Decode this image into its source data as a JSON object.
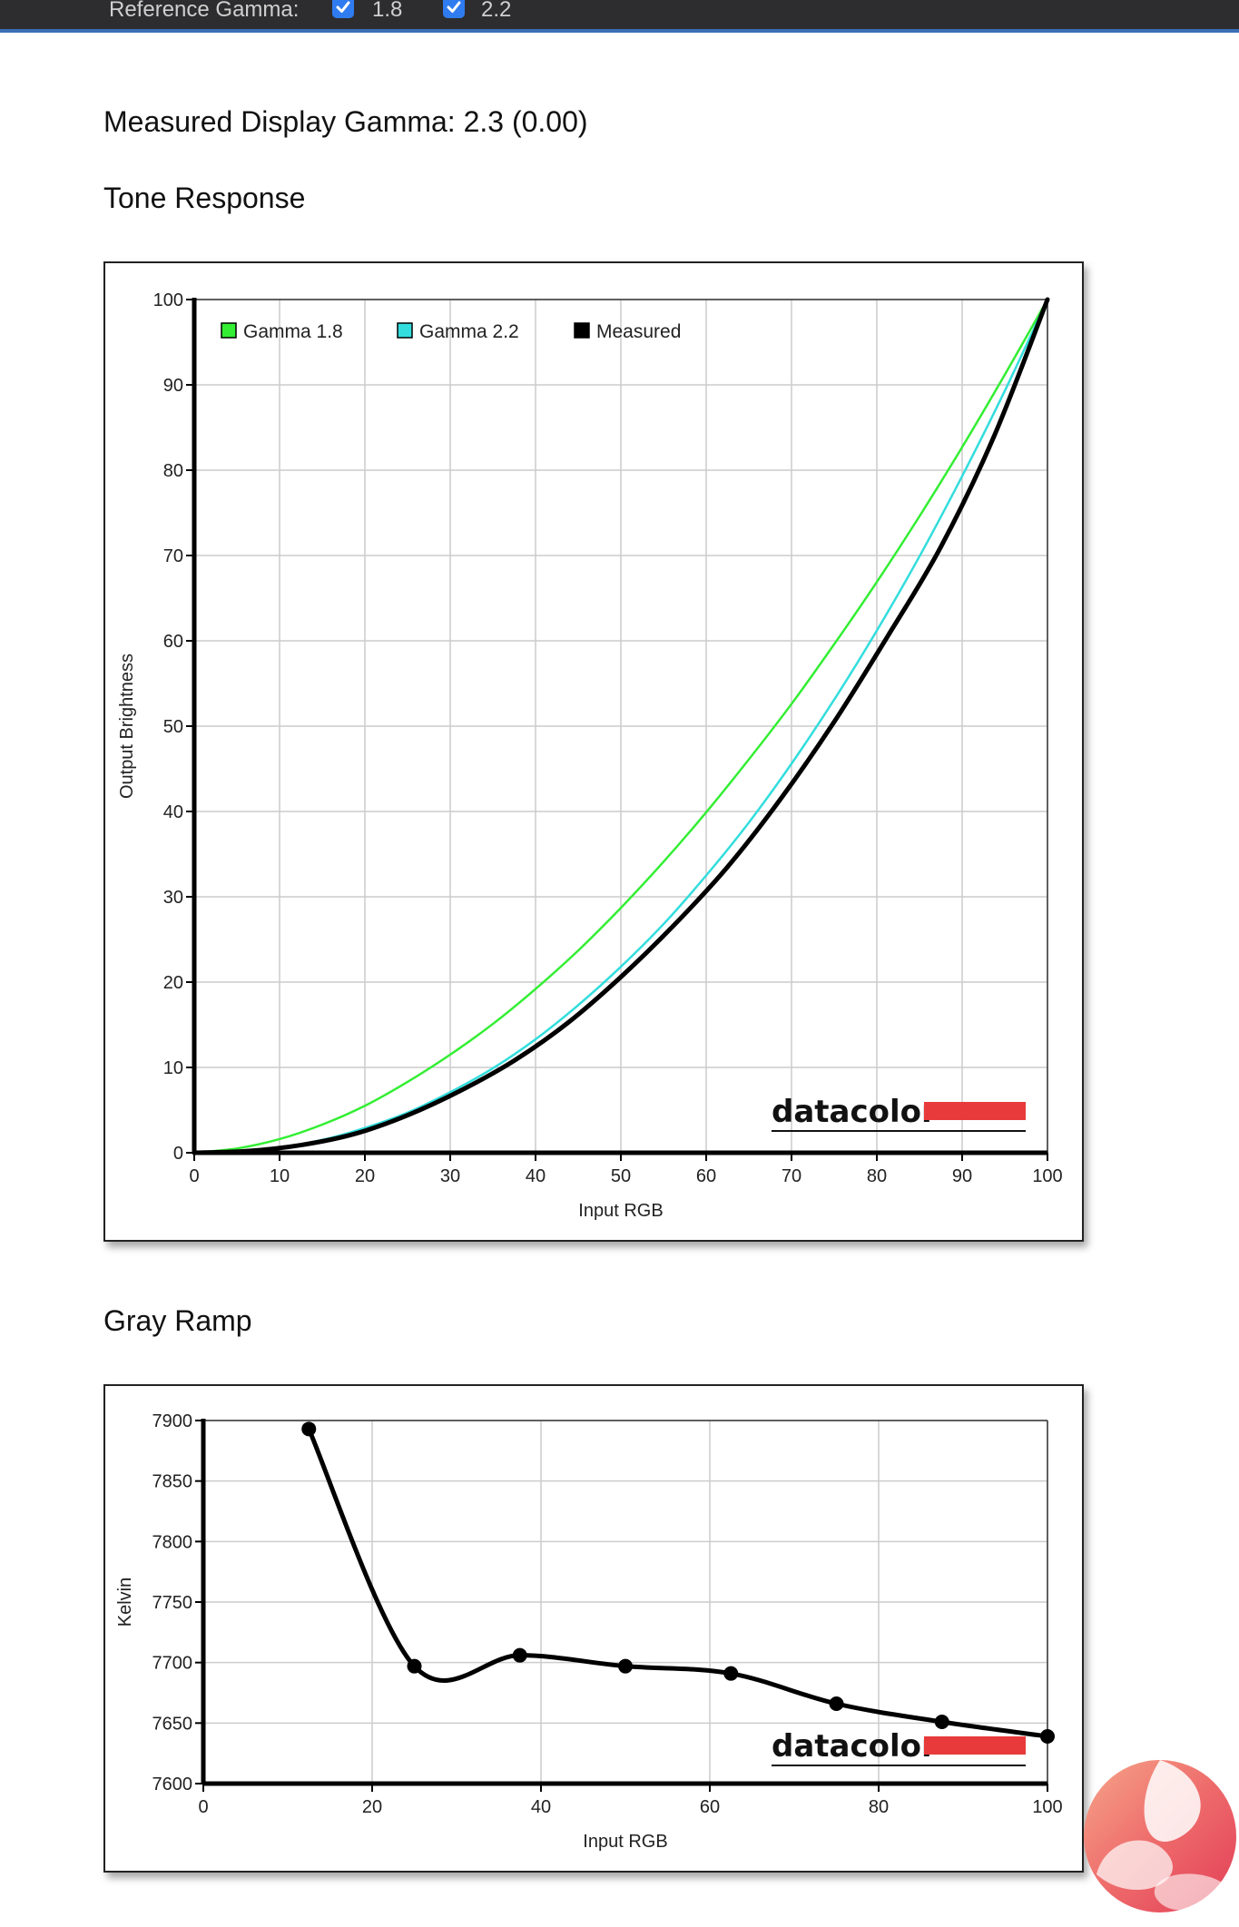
{
  "header": {
    "reference_gamma_label": "Reference Gamma:",
    "checkboxes": [
      {
        "label": "1.8",
        "checked": true
      },
      {
        "label": "2.2",
        "checked": true
      }
    ]
  },
  "measured_gamma_text": "Measured Display Gamma: 2.3 (0.00)",
  "sections": {
    "tone_response_title": "Tone Response",
    "gray_ramp_title": "Gray Ramp"
  },
  "colors": {
    "gamma18": "#33ee33",
    "gamma22": "#33dddd",
    "measured": "#000000",
    "brand_red": "#e83a3a",
    "accent_blue": "#3a6fb5"
  },
  "watermark_brand": "datacolor",
  "chart_data": [
    {
      "type": "line",
      "xlabel": "Input RGB",
      "ylabel": "Output Brightness",
      "xlim": [
        0,
        100
      ],
      "ylim": [
        0,
        100
      ],
      "xticks": [
        0,
        10,
        20,
        30,
        40,
        50,
        60,
        70,
        80,
        90,
        100
      ],
      "yticks": [
        0,
        10,
        20,
        30,
        40,
        50,
        60,
        70,
        80,
        90,
        100
      ],
      "grid": true,
      "legend_position": "top-left",
      "series": [
        {
          "name": "Gamma 1.8",
          "color": "#33ee33",
          "x": [
            0,
            5,
            10,
            15,
            20,
            25,
            30,
            35,
            40,
            45,
            50,
            55,
            60,
            65,
            70,
            75,
            80,
            85,
            90,
            95,
            100
          ],
          "y": [
            0,
            0.5,
            1.6,
            3.3,
            5.5,
            8.3,
            11.5,
            15.1,
            19.2,
            23.7,
            28.7,
            34.1,
            39.9,
            46.1,
            52.6,
            59.6,
            66.9,
            74.6,
            82.7,
            91.2,
            100
          ]
        },
        {
          "name": "Gamma 2.2",
          "color": "#33dddd",
          "x": [
            0,
            5,
            10,
            15,
            20,
            25,
            30,
            35,
            40,
            45,
            50,
            55,
            60,
            65,
            70,
            75,
            80,
            85,
            90,
            95,
            100
          ],
          "y": [
            0,
            0.1,
            0.6,
            1.5,
            2.9,
            4.7,
            7.1,
            9.9,
            13.3,
            17.3,
            21.8,
            26.8,
            32.5,
            38.7,
            45.6,
            53.1,
            61.2,
            69.9,
            79.3,
            89.3,
            100
          ]
        },
        {
          "name": "Measured",
          "color": "#000000",
          "x": [
            0,
            6.25,
            12.5,
            18.75,
            25,
            31.25,
            37.5,
            43.75,
            50,
            56.25,
            62.5,
            68.75,
            75,
            81.25,
            87.5,
            93.75,
            100
          ],
          "y": [
            0,
            0.2,
            0.9,
            2.2,
            4.4,
            7.3,
            10.8,
            15.2,
            20.6,
            26.7,
            33.5,
            41.5,
            50.5,
            60.5,
            71.0,
            84.0,
            100
          ]
        }
      ]
    },
    {
      "type": "line",
      "xlabel": "Input RGB",
      "ylabel": "Kelvin",
      "xlim": [
        0,
        100
      ],
      "ylim": [
        7600,
        7900
      ],
      "xticks": [
        0,
        20,
        40,
        60,
        80,
        100
      ],
      "yticks": [
        7600,
        7650,
        7700,
        7750,
        7800,
        7850,
        7900
      ],
      "grid": true,
      "series": [
        {
          "color": "#000000",
          "x": [
            12.5,
            25,
            37.5,
            50,
            62.5,
            75,
            87.5,
            100
          ],
          "y": [
            7893,
            7697,
            7706,
            7697,
            7691,
            7666,
            7651,
            7639
          ]
        }
      ]
    }
  ]
}
